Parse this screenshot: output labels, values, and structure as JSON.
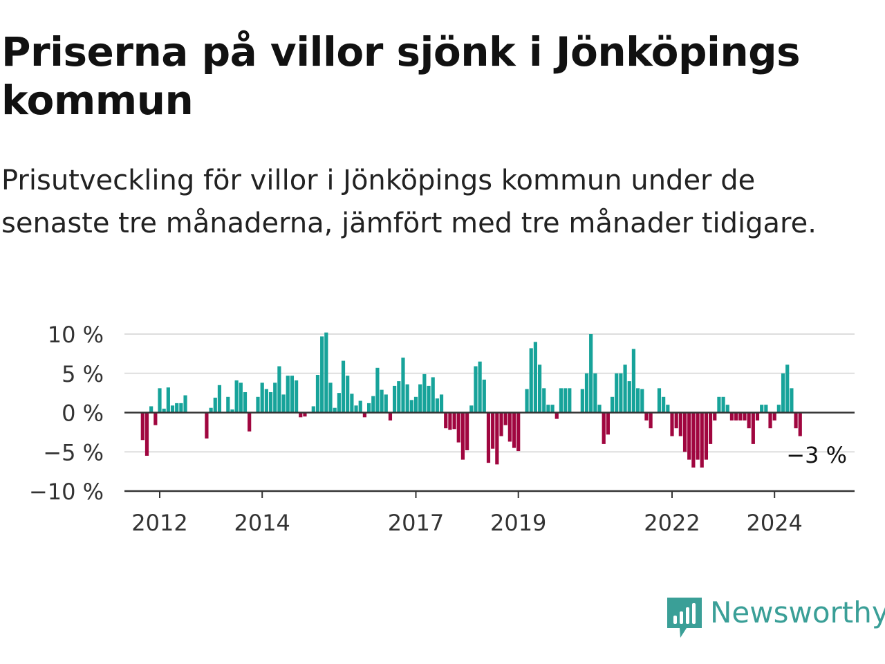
{
  "header": {
    "title": "Priserna på villor sjönk i Jönköpings kommun",
    "subtitle": "Prisutveckling för villor i Jönköpings kommun under de senaste tre månaderna, jämfört med tre månader tidigare."
  },
  "brand": {
    "name": "Newsworthy",
    "color": "#3a9f97",
    "icon": "bar-chart-speech-bubble-icon"
  },
  "chart_data": {
    "type": "bar",
    "unit": "%",
    "x_start": "2011-09",
    "ylim": [
      -10,
      10
    ],
    "yticks": [
      10,
      5,
      0,
      -5,
      -10
    ],
    "ytick_labels": [
      "10 %",
      "5 %",
      "0 %",
      "−5 %",
      "−10 %"
    ],
    "xticks": [
      "2012",
      "2014",
      "2017",
      "2019",
      "2022",
      "2024"
    ],
    "grid": true,
    "colors": {
      "positive": "#17a39a",
      "negative": "#a0063f",
      "grid": "#dddddd",
      "zero": "#333333"
    },
    "last_value_label": "−3 %",
    "values": [
      -3.5,
      -5.5,
      0.8,
      -1.6,
      3.1,
      0.5,
      3.2,
      0.9,
      1.2,
      1.2,
      2.2,
      0,
      0,
      0,
      0,
      -3.3,
      0.6,
      1.9,
      3.5,
      0.1,
      2.0,
      0.4,
      4.1,
      3.8,
      2.6,
      -2.4,
      0,
      2.0,
      3.8,
      3.0,
      2.6,
      3.8,
      5.9,
      2.3,
      4.7,
      4.7,
      4.1,
      -0.6,
      -0.5,
      0.1,
      0.8,
      4.8,
      9.7,
      10.2,
      3.8,
      0.6,
      2.5,
      6.6,
      4.7,
      2.4,
      0.9,
      1.5,
      -0.6,
      1.2,
      2.1,
      5.7,
      2.9,
      2.3,
      -1.0,
      3.4,
      4.0,
      7.0,
      3.6,
      1.6,
      2.0,
      3.6,
      4.9,
      3.4,
      4.5,
      1.8,
      2.3,
      -2.0,
      -2.2,
      -2.1,
      -3.8,
      -6.0,
      -4.8,
      0.9,
      5.9,
      6.5,
      4.2,
      -6.4,
      -4.6,
      -6.6,
      -3.0,
      -1.6,
      -3.7,
      -4.5,
      -4.9,
      0,
      3.0,
      8.2,
      9.0,
      6.1,
      3.1,
      1.0,
      1.0,
      -0.8,
      3.1,
      3.1,
      3.1,
      0,
      0,
      3.0,
      5.0,
      10.0,
      5.0,
      1.0,
      -4.0,
      -2.8,
      2.0,
      5.0,
      5.0,
      6.1,
      4.0,
      8.1,
      3.1,
      3.0,
      -1.0,
      -2.0,
      0,
      3.1,
      2.0,
      1.0,
      -3.0,
      -2.0,
      -3.0,
      -5.0,
      -6.0,
      -7.0,
      -6.0,
      -7.0,
      -6.0,
      -4.0,
      -1.0,
      2.0,
      2.0,
      1.0,
      -1.0,
      -1.0,
      -1.0,
      -1.0,
      -2.0,
      -4.0,
      -1.0,
      1.0,
      1.0,
      -2.0,
      -1.0,
      1.0,
      5.0,
      6.1,
      3.1,
      -2.0,
      -3.0
    ]
  }
}
